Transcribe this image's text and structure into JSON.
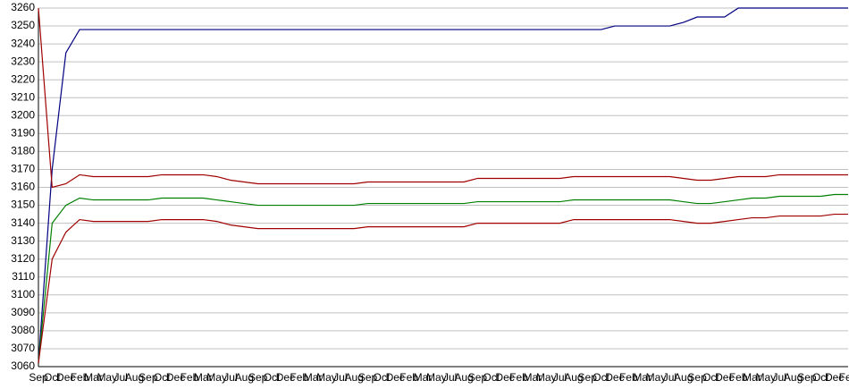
{
  "chart_data": {
    "type": "line",
    "categories": [
      "Sep",
      "Oct",
      "Dec",
      "Feb",
      "Mar",
      "May",
      "Jul",
      "Aug",
      "Sep",
      "Oct",
      "Dec",
      "Feb",
      "Mar",
      "May",
      "Jul",
      "Aug",
      "Sep",
      "Oct",
      "Dec",
      "Feb",
      "Mar",
      "May",
      "Jul",
      "Aug",
      "Sep",
      "Oct",
      "Dec",
      "Feb",
      "Mar",
      "May",
      "Jul",
      "Aug",
      "Sep",
      "Oct",
      "Dec",
      "Feb",
      "Mar",
      "May",
      "Jul",
      "Aug",
      "Sep",
      "Oct",
      "Dec",
      "Feb",
      "Mar",
      "May",
      "Jul",
      "Aug",
      "Sep",
      "Oct",
      "Dec",
      "Feb",
      "Mar",
      "May",
      "Jul",
      "Aug",
      "Sep",
      "Oct",
      "Dec",
      "Feb"
    ],
    "series": [
      {
        "color": "#000080",
        "values": [
          3062,
          3170,
          3235,
          3248,
          3248,
          3248,
          3248,
          3248,
          3248,
          3248,
          3248,
          3248,
          3248,
          3248,
          3248,
          3248,
          3248,
          3248,
          3248,
          3248,
          3248,
          3248,
          3248,
          3248,
          3248,
          3248,
          3248,
          3248,
          3248,
          3248,
          3248,
          3248,
          3248,
          3248,
          3248,
          3248,
          3248,
          3248,
          3248,
          3248,
          3248,
          3248,
          3250,
          3250,
          3250,
          3250,
          3250,
          3252,
          3255,
          3255,
          3255,
          3260,
          3260,
          3260,
          3260,
          3260,
          3260,
          3260,
          3260,
          3260
        ]
      },
      {
        "color": "#a00000",
        "values": [
          3260,
          3160,
          3162,
          3167,
          3166,
          3166,
          3166,
          3166,
          3166,
          3167,
          3167,
          3167,
          3167,
          3166,
          3164,
          3163,
          3162,
          3162,
          3162,
          3162,
          3162,
          3162,
          3162,
          3162,
          3163,
          3163,
          3163,
          3163,
          3163,
          3163,
          3163,
          3163,
          3165,
          3165,
          3165,
          3165,
          3165,
          3165,
          3165,
          3166,
          3166,
          3166,
          3166,
          3166,
          3166,
          3166,
          3166,
          3165,
          3164,
          3164,
          3165,
          3166,
          3166,
          3166,
          3167,
          3167,
          3167,
          3167,
          3167,
          3167
        ]
      },
      {
        "color": "#008000",
        "values": [
          3062,
          3140,
          3150,
          3154,
          3153,
          3153,
          3153,
          3153,
          3153,
          3154,
          3154,
          3154,
          3154,
          3153,
          3152,
          3151,
          3150,
          3150,
          3150,
          3150,
          3150,
          3150,
          3150,
          3150,
          3151,
          3151,
          3151,
          3151,
          3151,
          3151,
          3151,
          3151,
          3152,
          3152,
          3152,
          3152,
          3152,
          3152,
          3152,
          3153,
          3153,
          3153,
          3153,
          3153,
          3153,
          3153,
          3153,
          3152,
          3151,
          3151,
          3152,
          3153,
          3154,
          3154,
          3155,
          3155,
          3155,
          3155,
          3156,
          3156
        ]
      },
      {
        "color": "#a00000",
        "values": [
          3062,
          3120,
          3135,
          3142,
          3141,
          3141,
          3141,
          3141,
          3141,
          3142,
          3142,
          3142,
          3142,
          3141,
          3139,
          3138,
          3137,
          3137,
          3137,
          3137,
          3137,
          3137,
          3137,
          3137,
          3138,
          3138,
          3138,
          3138,
          3138,
          3138,
          3138,
          3138,
          3140,
          3140,
          3140,
          3140,
          3140,
          3140,
          3140,
          3142,
          3142,
          3142,
          3142,
          3142,
          3142,
          3142,
          3142,
          3141,
          3140,
          3140,
          3141,
          3142,
          3143,
          3143,
          3144,
          3144,
          3144,
          3144,
          3145,
          3145
        ]
      }
    ],
    "ylim": [
      3060,
      3260
    ],
    "yticks": [
      3060,
      3070,
      3080,
      3090,
      3100,
      3110,
      3120,
      3130,
      3140,
      3150,
      3160,
      3170,
      3180,
      3190,
      3200,
      3210,
      3220,
      3230,
      3240,
      3250,
      3260
    ],
    "grid": true
  }
}
